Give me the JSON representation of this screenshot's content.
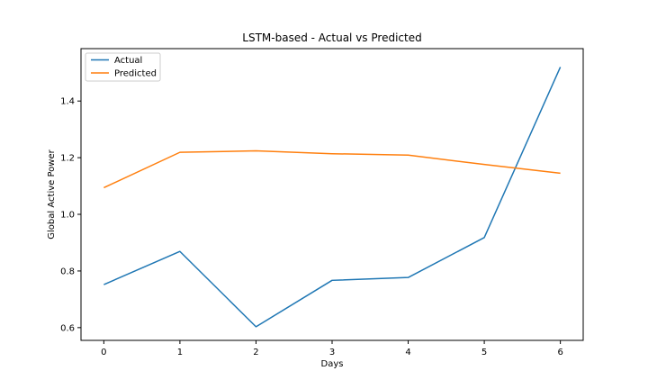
{
  "chart_data": {
    "type": "line",
    "title": "LSTM-based - Actual vs Predicted",
    "xlabel": "Days",
    "ylabel": "Global Active Power",
    "x": [
      0,
      1,
      2,
      3,
      4,
      5,
      6
    ],
    "xticks": [
      "0",
      "1",
      "2",
      "3",
      "4",
      "5",
      "6"
    ],
    "yticks": [
      "0.6",
      "0.8",
      "1.0",
      "1.2",
      "1.4"
    ],
    "xlim": [
      -0.3,
      6.3
    ],
    "ylim": [
      0.555,
      1.585
    ],
    "grid": false,
    "legend_position": "top-left",
    "series": [
      {
        "name": "Actual",
        "color": "#1f77b4",
        "values": [
          0.752,
          0.869,
          0.603,
          0.767,
          0.777,
          0.918,
          1.52
        ]
      },
      {
        "name": "Predicted",
        "color": "#ff7f0e",
        "values": [
          1.094,
          1.219,
          1.224,
          1.214,
          1.209,
          1.176,
          1.145
        ]
      }
    ]
  }
}
